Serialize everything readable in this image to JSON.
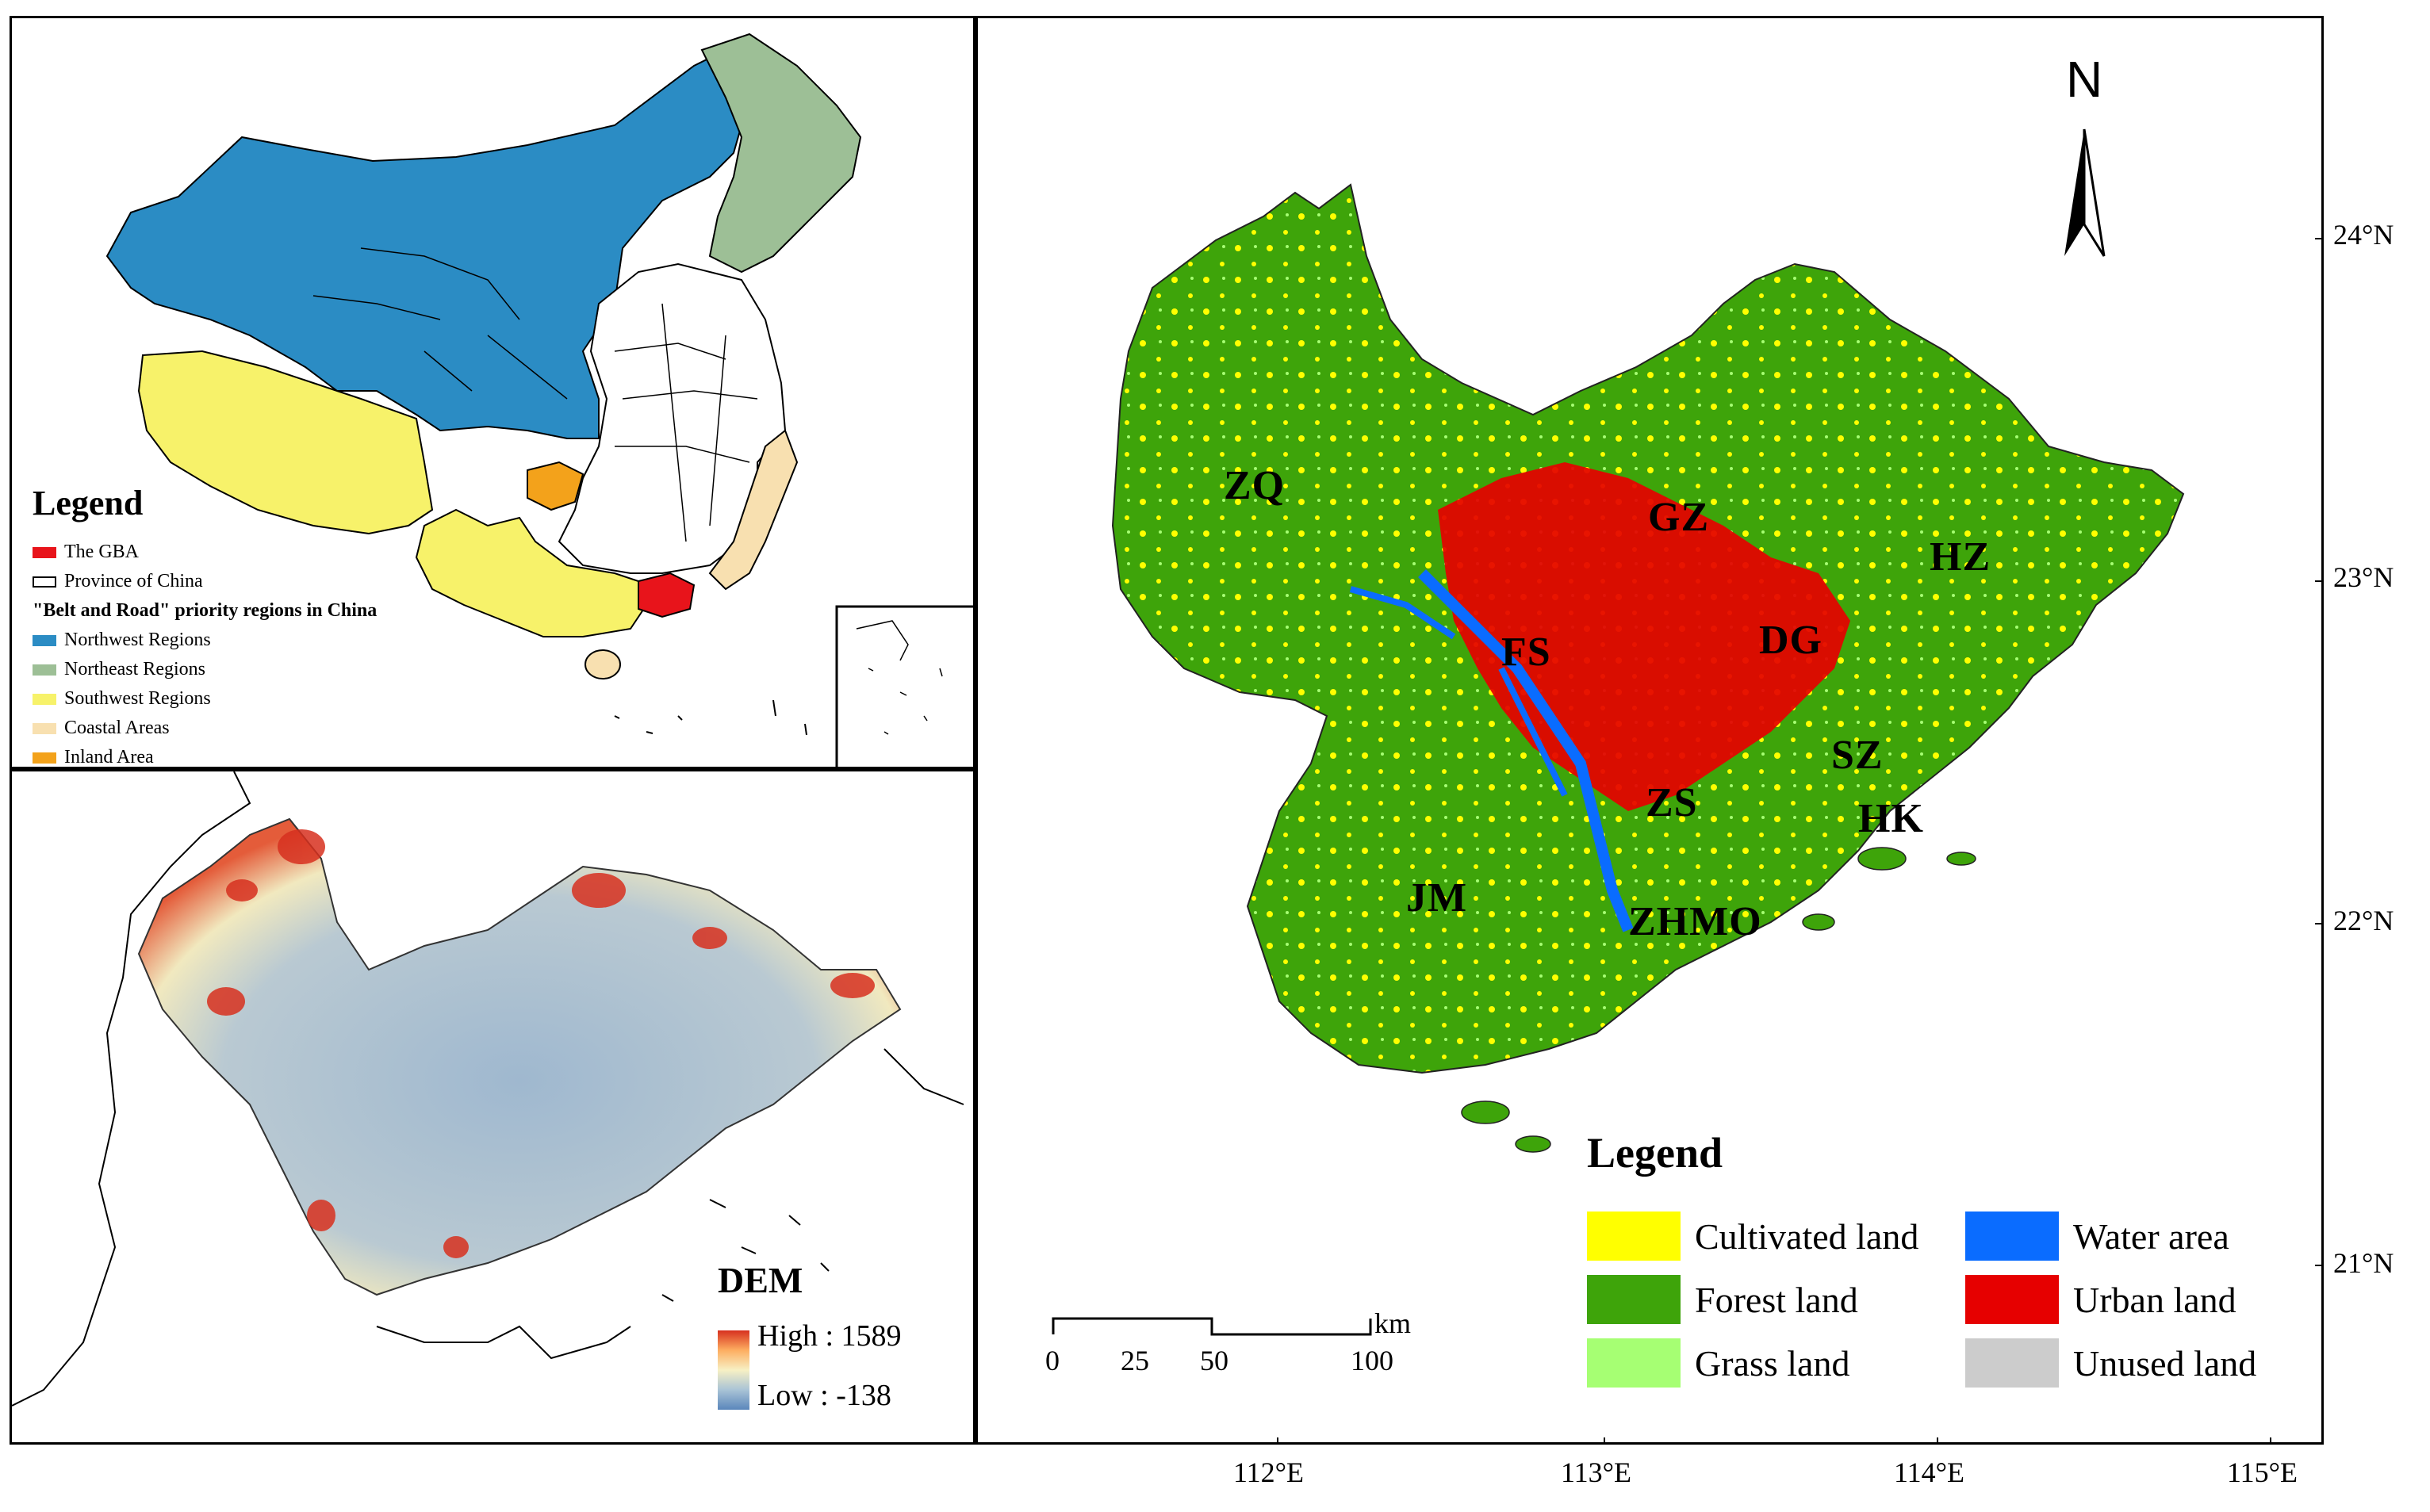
{
  "china_panel": {
    "legend_title": "Legend",
    "legend_items": [
      {
        "label": "The GBA",
        "color": "#e8141b",
        "style": "fill"
      },
      {
        "label": "Province of China",
        "color": "#ffffff",
        "style": "outline"
      },
      {
        "label": "\"Belt and Road\" priority regions in China",
        "color": "",
        "style": "heading"
      },
      {
        "label": "Northwest Regions",
        "color": "#2b8cc4",
        "style": "fill"
      },
      {
        "label": "Northeast Regions",
        "color": "#9dbf96",
        "style": "fill"
      },
      {
        "label": "Southwest Regions",
        "color": "#f7f26a",
        "style": "fill"
      },
      {
        "label": "Coastal Areas",
        "color": "#f8e0b0",
        "style": "fill"
      },
      {
        "label": "Inland Area",
        "color": "#f3a21b",
        "style": "fill"
      }
    ]
  },
  "dem_panel": {
    "title": "DEM",
    "high_label": "High : 1589",
    "low_label": "Low : -138",
    "ramp_colors": [
      "#d7301f",
      "#fdae61",
      "#f7f0c4",
      "#a9c3d6",
      "#5a86bb"
    ]
  },
  "landuse_panel": {
    "north_label": "N",
    "legend_title": "Legend",
    "legend_items": [
      {
        "label": "Cultivated land",
        "color": "#ffff00"
      },
      {
        "label": "Water area",
        "color": "#0a6cff"
      },
      {
        "label": "Forest land",
        "color": "#3ea40a"
      },
      {
        "label": "Urban land",
        "color": "#e60000"
      },
      {
        "label": "Grass land",
        "color": "#a6ff73"
      },
      {
        "label": "Unused land",
        "color": "#cccccc"
      }
    ],
    "cities": [
      {
        "label": "ZQ"
      },
      {
        "label": "GZ"
      },
      {
        "label": "HZ"
      },
      {
        "label": "FS"
      },
      {
        "label": "DG"
      },
      {
        "label": "SZ"
      },
      {
        "label": "ZS"
      },
      {
        "label": "HK"
      },
      {
        "label": "JM"
      },
      {
        "label": "ZHMO"
      }
    ],
    "scale_bar": {
      "ticks": [
        "0",
        "25",
        "50",
        "100"
      ],
      "unit": "km"
    },
    "lat_labels": [
      "24°N",
      "23°N",
      "22°N",
      "21°N"
    ],
    "lon_labels": [
      "112°E",
      "113°E",
      "114°E",
      "115°E"
    ]
  }
}
